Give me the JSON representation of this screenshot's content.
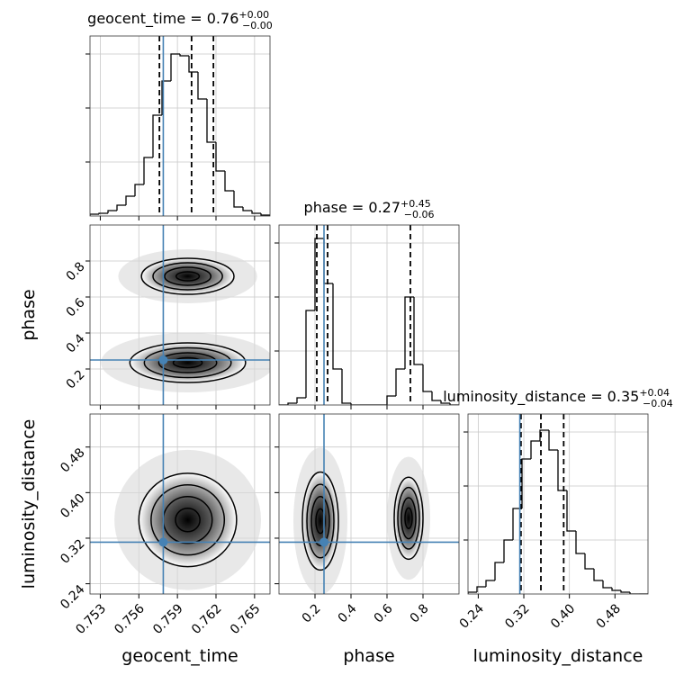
{
  "chart_data": [
    {
      "type": "histogram",
      "title": "geocent_time = 0.76",
      "title_plus": "+0.00",
      "title_minus": "−0.00",
      "bins": [
        0.7522,
        0.7529,
        0.7536,
        0.7543,
        0.755,
        0.7557,
        0.7564,
        0.7571,
        0.7578,
        0.7585,
        0.7592,
        0.7599,
        0.7606,
        0.7613,
        0.762,
        0.7627,
        0.7634,
        0.7641,
        0.7648,
        0.7655,
        0.7662
      ],
      "counts": [
        2,
        3,
        6,
        12,
        22,
        35,
        65,
        112,
        150,
        180,
        178,
        160,
        130,
        82,
        50,
        28,
        10,
        6,
        3,
        1
      ],
      "quantiles": [
        0.7576,
        0.7601,
        0.7618
      ],
      "truth": 0.7579,
      "xlim": [
        0.7522,
        0.7662
      ],
      "xticks": [
        0.753,
        0.756,
        0.759,
        0.762,
        0.765
      ],
      "ylim": [
        0,
        200
      ],
      "yticks": [
        60,
        120,
        180
      ],
      "grid": true,
      "color": "#000000",
      "truth_color": "#4682b4"
    },
    {
      "type": "contour",
      "ylabel": "phase",
      "modes": [
        {
          "x": 0.7598,
          "y": 0.715,
          "sx": 0.0018,
          "sy": 0.05
        },
        {
          "x": 0.7598,
          "y": 0.235,
          "sx": 0.00225,
          "sy": 0.055
        }
      ],
      "levels": [
        0.5,
        1,
        1.5,
        2
      ],
      "truths": [
        0.7579,
        0.25
      ],
      "xlim": [
        0.7522,
        0.7662
      ],
      "xticks": [
        0.753,
        0.756,
        0.759,
        0.762,
        0.765
      ],
      "ylim": [
        0,
        1
      ],
      "yticks": [
        0.2,
        0.4,
        0.6,
        0.8
      ],
      "grid": true,
      "color": "#000000",
      "truth_color": "#4682b4"
    },
    {
      "type": "histogram",
      "title": "phase = 0.27",
      "title_plus": "+0.45",
      "title_minus": "−0.06",
      "bins": [
        0,
        0.05,
        0.1,
        0.15,
        0.2,
        0.25,
        0.3,
        0.35,
        0.4,
        0.45,
        0.5,
        0.55,
        0.6,
        0.65,
        0.7,
        0.75,
        0.8,
        0.85,
        0.9,
        0.95,
        1.0
      ],
      "counts": [
        0,
        2,
        8,
        105,
        185,
        135,
        40,
        2,
        0,
        0,
        0,
        0,
        10,
        40,
        120,
        45,
        15,
        5,
        2,
        0
      ],
      "quantiles": [
        0.21,
        0.27,
        0.73
      ],
      "truth": 0.25,
      "xlim": [
        0,
        1
      ],
      "xticks": [
        0.2,
        0.4,
        0.6,
        0.8
      ],
      "ylim": [
        0,
        200
      ],
      "yticks": [
        60,
        120,
        180
      ],
      "grid": true,
      "color": "#000000",
      "truth_color": "#4682b4"
    },
    {
      "type": "contour",
      "xlabel": "geocent_time",
      "ylabel": "luminosity_distance",
      "modes": [
        {
          "x": 0.7598,
          "y": 0.352,
          "sx": 0.0019,
          "sy": 0.041
        }
      ],
      "levels": [
        0.5,
        1,
        1.5,
        2
      ],
      "truths": [
        0.7579,
        0.313
      ],
      "xlim": [
        0.7522,
        0.7662
      ],
      "xticks": [
        0.753,
        0.756,
        0.759,
        0.762,
        0.765
      ],
      "ylim": [
        0.222,
        0.538
      ],
      "yticks": [
        0.24,
        0.32,
        {
          "value": 0.4,
          "label": "0.40"
        },
        0.48
      ],
      "grid": true,
      "color": "#000000",
      "truth_color": "#4682b4"
    },
    {
      "type": "contour",
      "xlabel": "phase",
      "modes": [
        {
          "x": 0.23,
          "y": 0.35,
          "sx": 0.05,
          "sy": 0.043
        },
        {
          "x": 0.72,
          "y": 0.355,
          "sx": 0.04,
          "sy": 0.036
        }
      ],
      "levels": [
        0.5,
        1,
        1.5,
        2
      ],
      "truths": [
        0.25,
        0.313
      ],
      "xlim": [
        0,
        1
      ],
      "xticks": [
        0.2,
        0.4,
        0.6,
        0.8
      ],
      "ylim": [
        0.222,
        0.538
      ],
      "yticks": [
        0.24,
        0.32,
        {
          "value": 0.4,
          "label": "0.40"
        },
        0.48
      ],
      "grid": true,
      "color": "#000000",
      "truth_color": "#4682b4"
    },
    {
      "type": "histogram",
      "title": "luminosity_distance = 0.35",
      "title_plus": "+0.04",
      "title_minus": "−0.04",
      "xlabel": "luminosity_distance",
      "bins": [
        0.222,
        0.2378,
        0.2536,
        0.2694,
        0.2852,
        0.301,
        0.3168,
        0.3326,
        0.3484,
        0.3642,
        0.38,
        0.3958,
        0.4116,
        0.4274,
        0.4432,
        0.459,
        0.4748,
        0.4906,
        0.5064,
        0.5222,
        0.538
      ],
      "counts": [
        2,
        8,
        15,
        35,
        60,
        95,
        150,
        170,
        182,
        160,
        115,
        70,
        45,
        28,
        15,
        7,
        4,
        2,
        0,
        0
      ],
      "quantiles": [
        0.315,
        0.35,
        0.39
      ],
      "truth": 0.313,
      "xlim": [
        0.222,
        0.538
      ],
      "xticks": [
        0.24,
        0.32,
        {
          "value": 0.4,
          "label": "0.40"
        },
        0.48
      ],
      "ylim": [
        0,
        200
      ],
      "yticks": [
        60,
        120,
        180
      ],
      "grid": true,
      "color": "#000000",
      "truth_color": "#4682b4"
    }
  ]
}
